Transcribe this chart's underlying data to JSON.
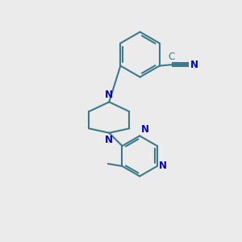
{
  "background_color": "#ebebeb",
  "bond_color": "#3a7a8a",
  "heteroatom_color": "#0000cc",
  "line_width": 1.5,
  "font_size": 8.5,
  "fig_size": [
    3.0,
    3.0
  ],
  "dpi": 100,
  "xlim": [
    0,
    10
  ],
  "ylim": [
    0,
    10
  ]
}
